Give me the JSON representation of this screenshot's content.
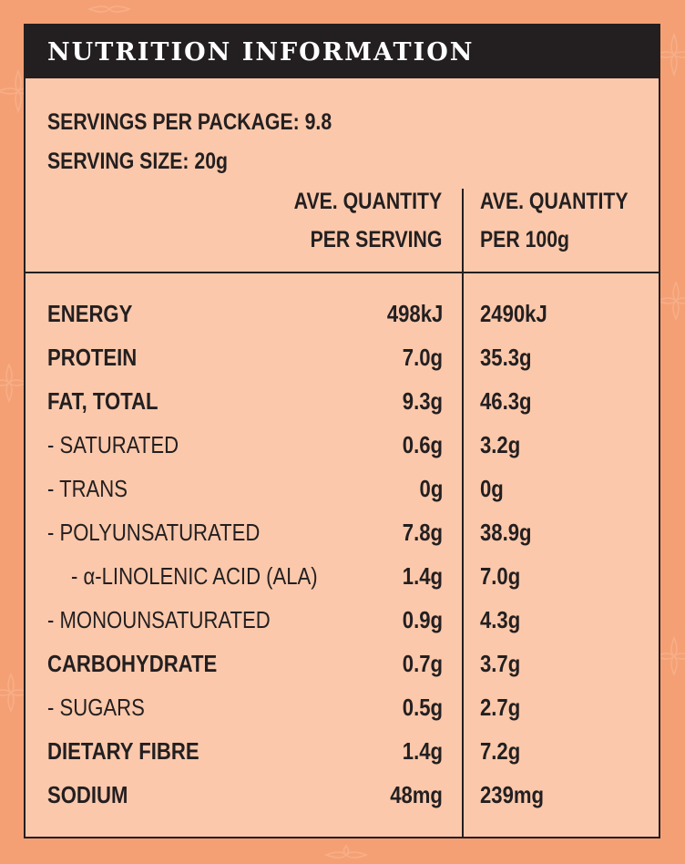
{
  "colors": {
    "background": "#f5a074",
    "panel": "#fbc8ab",
    "title_bar": "#231f20",
    "title_text": "#ffffff",
    "text": "#231f20"
  },
  "title": "NUTRITION INFORMATION",
  "servings_per_package": "SERVINGS PER PACKAGE: 9.8",
  "serving_size": "SERVING SIZE: 20g",
  "columns": {
    "per_serving_line1": "AVE. QUANTITY",
    "per_serving_line2": "PER SERVING",
    "per_100g_line1": "AVE. QUANTITY",
    "per_100g_line2": "PER 100g"
  },
  "rows": [
    {
      "name": "ENERGY",
      "per_serving": "498kJ",
      "per_100g": "2490kJ"
    },
    {
      "name": "PROTEIN",
      "per_serving": "7.0g",
      "per_100g": "35.3g"
    },
    {
      "name": "FAT, TOTAL",
      "per_serving": "9.3g",
      "per_100g": "46.3g"
    },
    {
      "name": "- SATURATED",
      "per_serving": "0.6g",
      "per_100g": "3.2g"
    },
    {
      "name": "- TRANS",
      "per_serving": "0g",
      "per_100g": "0g"
    },
    {
      "name": "- POLYUNSATURATED",
      "per_serving": "7.8g",
      "per_100g": "38.9g"
    },
    {
      "name": "- α-LINOLENIC ACID (ALA)",
      "per_serving": "1.4g",
      "per_100g": "7.0g"
    },
    {
      "name": "- MONOUNSATURATED",
      "per_serving": "0.9g",
      "per_100g": "4.3g"
    },
    {
      "name": "CARBOHYDRATE",
      "per_serving": "0.7g",
      "per_100g": "3.7g"
    },
    {
      "name": "- SUGARS",
      "per_serving": "0.5g",
      "per_100g": "2.7g"
    },
    {
      "name": "DIETARY FIBRE",
      "per_serving": "1.4g",
      "per_100g": "7.2g"
    },
    {
      "name": "SODIUM",
      "per_serving": "48mg",
      "per_100g": "239mg"
    }
  ]
}
